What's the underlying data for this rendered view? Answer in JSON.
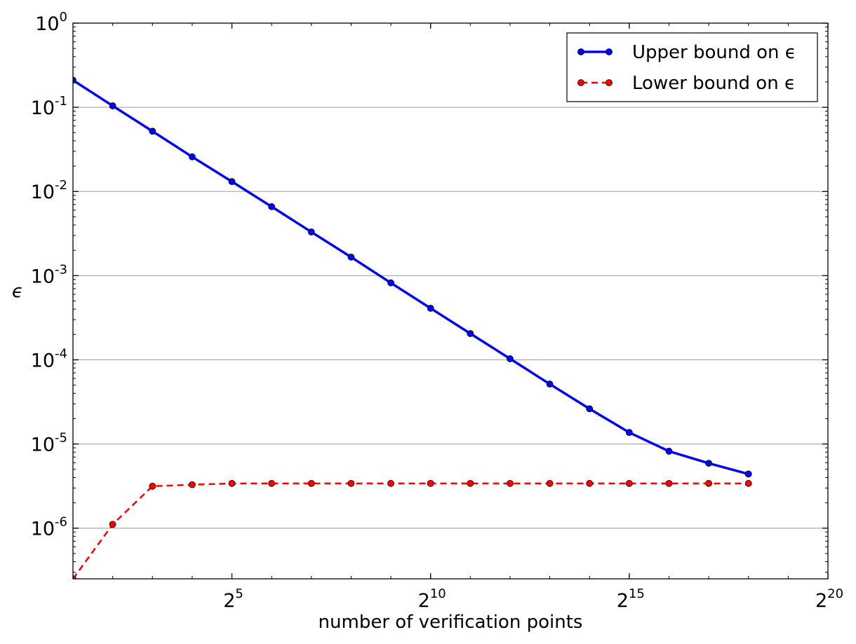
{
  "chart_data": {
    "type": "line",
    "xlabel": "number of verification points",
    "ylabel": "ϵ",
    "x_scale": "log2",
    "y_scale": "log10",
    "xlim": [
      2,
      1048576
    ],
    "ylim": [
      2.5e-07,
      1
    ],
    "x_ticks": [
      {
        "value": 32,
        "base": "2",
        "exp": "5"
      },
      {
        "value": 1024,
        "base": "2",
        "exp": "10"
      },
      {
        "value": 32768,
        "base": "2",
        "exp": "15"
      },
      {
        "value": 1048576,
        "base": "2",
        "exp": "20"
      }
    ],
    "y_ticks": [
      {
        "value": 1,
        "base": "10",
        "exp": "0"
      },
      {
        "value": 0.1,
        "base": "10",
        "exp": "-1"
      },
      {
        "value": 0.01,
        "base": "10",
        "exp": "-2"
      },
      {
        "value": 0.001,
        "base": "10",
        "exp": "-3"
      },
      {
        "value": 0.0001,
        "base": "10",
        "exp": "-4"
      },
      {
        "value": 1e-05,
        "base": "10",
        "exp": "-5"
      },
      {
        "value": 1e-06,
        "base": "10",
        "exp": "-6"
      }
    ],
    "grid": "horizontal",
    "legend_position": "top-right",
    "x": [
      2,
      4,
      8,
      16,
      32,
      64,
      128,
      256,
      512,
      1024,
      2048,
      4096,
      8192,
      16384,
      32768,
      65536,
      131072,
      262144
    ],
    "series": [
      {
        "name": "Upper bound on ϵ",
        "color": "#0000ff",
        "style": "solid",
        "values": [
          0.21,
          0.104,
          0.052,
          0.0258,
          0.0131,
          0.0066,
          0.0033,
          0.00166,
          0.00082,
          0.00041,
          0.000205,
          0.000103,
          5.15e-05,
          2.62e-05,
          1.37e-05,
          8.2e-06,
          5.9e-06,
          4.4e-06
        ]
      },
      {
        "name": "Lower bound on ϵ",
        "color": "#ff0000",
        "style": "dashed",
        "values": [
          2.5e-07,
          1.11e-06,
          3.15e-06,
          3.28e-06,
          3.4e-06,
          3.4e-06,
          3.4e-06,
          3.4e-06,
          3.4e-06,
          3.4e-06,
          3.4e-06,
          3.4e-06,
          3.4e-06,
          3.4e-06,
          3.4e-06,
          3.4e-06,
          3.4e-06,
          3.4e-06
        ]
      }
    ]
  }
}
